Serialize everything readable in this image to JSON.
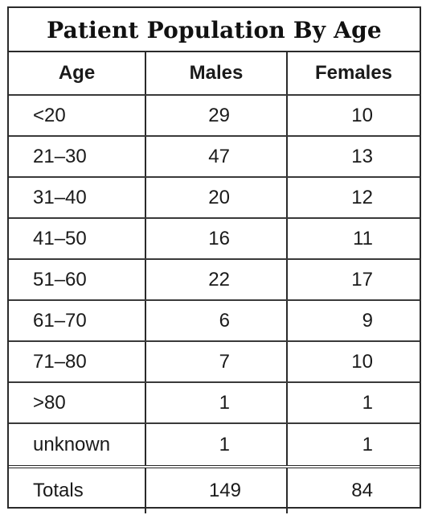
{
  "title": "Patient Population By Age",
  "columns": [
    "Age",
    "Males",
    "Females"
  ],
  "rows": [
    {
      "age": "<20",
      "males": "29",
      "females": "10"
    },
    {
      "age": "21–30",
      "males": "47",
      "females": "13"
    },
    {
      "age": "31–40",
      "males": "20",
      "females": "12"
    },
    {
      "age": "41–50",
      "males": "16",
      "females": "11"
    },
    {
      "age": "51–60",
      "males": "22",
      "females": "17"
    },
    {
      "age": "61–70",
      "males": "6",
      "females": "9"
    },
    {
      "age": "71–80",
      "males": "7",
      "females": "10"
    },
    {
      "age": ">80",
      "males": "1",
      "females": "1"
    },
    {
      "age": "unknown",
      "males": "1",
      "females": "1"
    }
  ],
  "totals": {
    "label": "Totals",
    "males": "149",
    "females": "84"
  }
}
